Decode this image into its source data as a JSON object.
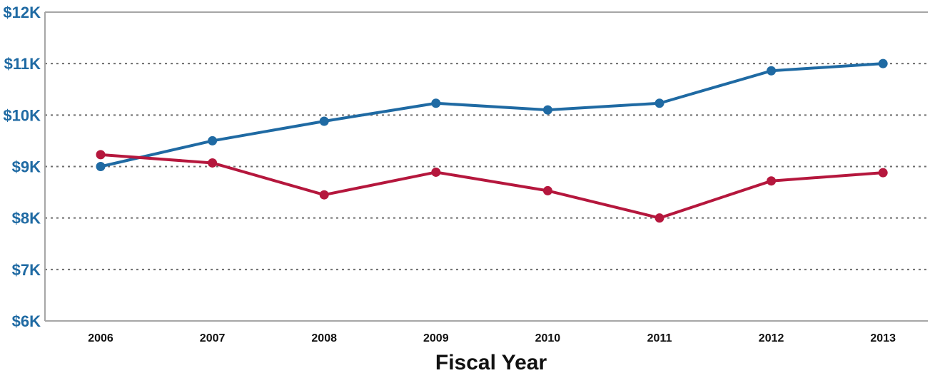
{
  "chart_data": {
    "type": "line",
    "title": "",
    "xlabel": "Fiscal Year",
    "ylabel": "",
    "categories": [
      "2006",
      "2007",
      "2008",
      "2009",
      "2010",
      "2011",
      "2012",
      "2013"
    ],
    "y_ticks": [
      6000,
      7000,
      8000,
      9000,
      10000,
      11000,
      12000
    ],
    "y_tick_labels": [
      "$6K",
      "$7K",
      "$8K",
      "$9K",
      "$10K",
      "$11K",
      "$12K"
    ],
    "ylim": [
      6000,
      12000
    ],
    "grid": "horizontal dotted",
    "legend": "none",
    "series": [
      {
        "color": "#1f6aa3",
        "values": [
          9000,
          9500,
          9880,
          10230,
          10100,
          10230,
          10860,
          11000
        ]
      },
      {
        "color": "#b5173d",
        "values": [
          9230,
          9070,
          8450,
          8890,
          8530,
          8000,
          8720,
          8880
        ]
      }
    ]
  },
  "colors": {
    "axis": "#a6a6a6",
    "grid": "#6e6e6e",
    "tick_text": "#1f6aa3"
  }
}
